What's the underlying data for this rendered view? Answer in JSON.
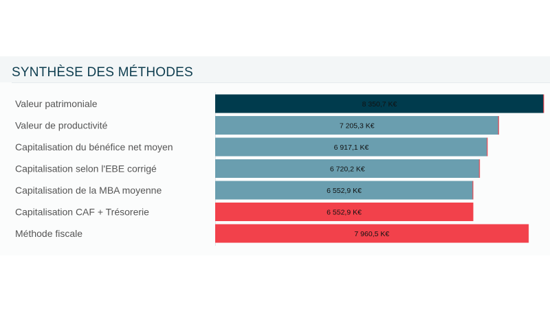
{
  "chart_data": {
    "type": "bar",
    "orientation": "horizontal",
    "title": "SYNTHÈSE DES MÉTHODES",
    "xlabel": "",
    "ylabel": "",
    "unit": "K€",
    "grid": false,
    "legend": "none",
    "xlim": [
      0,
      8350.7
    ],
    "categories": [
      "Valeur patrimoniale",
      "Valeur de productivité",
      "Capitalisation du bénéfice net moyen",
      "Capitalisation selon l'EBE corrigé",
      "Capitalisation de la MBA moyenne",
      "Capitalisation CAF + Trésorerie",
      "Méthode fiscale"
    ],
    "values": [
      8350.7,
      7205.3,
      6917.1,
      6720.2,
      6552.9,
      6552.9,
      7960.5
    ],
    "value_labels": [
      "8 350,7 K€",
      "7 205,3 K€",
      "6 917,1 K€",
      "6 720,2 K€",
      "6 552,9 K€",
      "6 552,9 K€",
      "7 960,5 K€"
    ],
    "colors": [
      "#003b4d",
      "#6a9eaf",
      "#6a9eaf",
      "#6a9eaf",
      "#6a9eaf",
      "#f2414b",
      "#f2414b"
    ],
    "value_label_colors": [
      "#ffffff",
      "#111111",
      "#111111",
      "#111111",
      "#111111",
      "#111111",
      "#111111"
    ]
  }
}
